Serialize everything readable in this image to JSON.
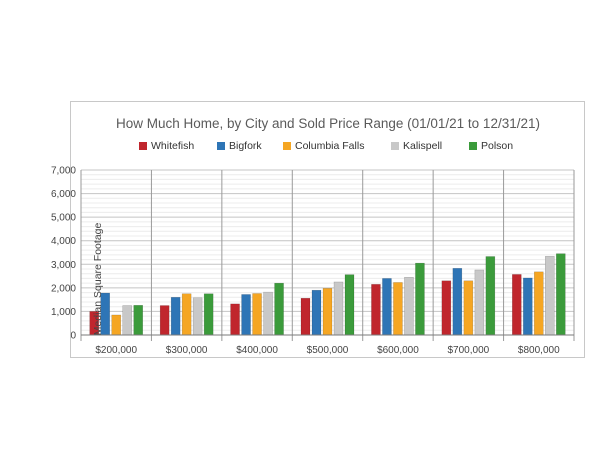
{
  "chart_data": {
    "type": "bar",
    "title": "How Much Home, by City and Sold Price Range (01/01/21 to 12/31/21)",
    "xlabel": "",
    "ylabel": "Median Square Footage",
    "categories": [
      "$200,000",
      "$300,000",
      "$400,000",
      "$500,000",
      "$600,000",
      "$700,000",
      "$800,000"
    ],
    "y_ticks": [
      "0",
      "1,000",
      "2,000",
      "3,000",
      "4,000",
      "5,000",
      "6,000",
      "7,000"
    ],
    "ylim": [
      0,
      7000
    ],
    "grid": true,
    "legend_position": "top",
    "series": [
      {
        "name": "Whitefish",
        "color": "#c0262d",
        "values": [
          1000,
          1250,
          1320,
          1560,
          2150,
          2300,
          2570
        ]
      },
      {
        "name": "Bigfork",
        "color": "#2e75b6",
        "values": [
          1780,
          1600,
          1720,
          1900,
          2400,
          2830,
          2420
        ]
      },
      {
        "name": "Columbia Falls",
        "color": "#f5a623",
        "values": [
          850,
          1750,
          1760,
          1980,
          2230,
          2300,
          2680
        ]
      },
      {
        "name": "Kalispell",
        "color": "#c8c8c8",
        "values": [
          1250,
          1580,
          1820,
          2250,
          2450,
          2760,
          3340
        ]
      },
      {
        "name": "Polson",
        "color": "#3b9b3b",
        "values": [
          1260,
          1750,
          2200,
          2560,
          3050,
          3330,
          3450
        ]
      }
    ]
  }
}
